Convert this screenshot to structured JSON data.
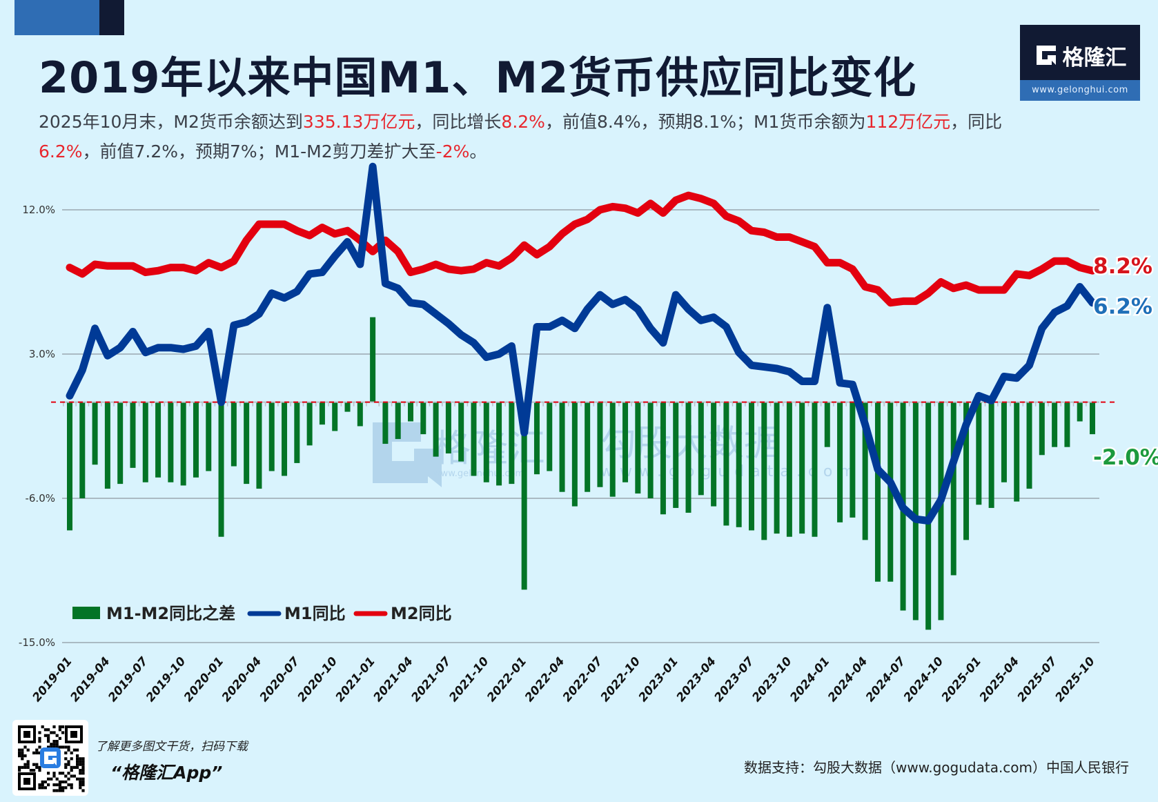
{
  "header": {
    "title": "2019年以来中国M1、M2货币供应同比变化",
    "subtitle_segments": [
      {
        "text": "2025年10月末，M2货币余额达到",
        "highlight": false
      },
      {
        "text": "335.13万亿元",
        "highlight": true
      },
      {
        "text": "，同比增长",
        "highlight": false
      },
      {
        "text": "8.2%",
        "highlight": true
      },
      {
        "text": "，前值8.4%，预期8.1%；M1货币余额为",
        "highlight": false
      },
      {
        "text": "112万亿元",
        "highlight": true
      },
      {
        "text": "，同比",
        "highlight": false
      },
      {
        "text": "6.2%",
        "highlight": true
      },
      {
        "text": "，前值7.2%，预期7%；M1-M2剪刀差扩大至",
        "highlight": false
      },
      {
        "text": "-2%",
        "highlight": true
      },
      {
        "text": "。",
        "highlight": false
      }
    ]
  },
  "logo": {
    "brand": "格隆汇",
    "url": "www.gelonghui.com",
    "icon": "gelonghui-g-logo-icon"
  },
  "watermark": {
    "left_brand": "格隆汇",
    "left_url": "www.gelonghui.com",
    "right_brand": "勾股大数据",
    "right_url": "www.gogudata.com"
  },
  "colors": {
    "m1": "#003a96",
    "m2": "#e3000f",
    "diff": "#037426",
    "highlight": "#e8262d",
    "m1_label": "#1f6fb8",
    "m2_label": "#d6141c",
    "diff_label": "#1d9a3d",
    "zero_line": "#e3000f",
    "grid": "#9aa7b0"
  },
  "chart_data": {
    "type": "bar+line",
    "title": "2019年以来中国M1、M2货币供应同比变化",
    "xlabel": "",
    "ylabel": "",
    "ylim": [
      -15,
      12
    ],
    "yticks": [
      12,
      3,
      -6,
      -15
    ],
    "ytick_labels": [
      "12.0%",
      "3.0%",
      "-6.0%",
      "-15.0%"
    ],
    "grid": true,
    "legend": {
      "placement": "bottom-left",
      "entries": [
        "M1-M2同比之差",
        "M1同比",
        "M2同比"
      ]
    },
    "end_labels": {
      "m2": "8.2%",
      "m1": "6.2%",
      "diff": "-2.0%"
    },
    "x": [
      "2019-01",
      "2019-02",
      "2019-03",
      "2019-04",
      "2019-05",
      "2019-06",
      "2019-07",
      "2019-08",
      "2019-09",
      "2019-10",
      "2019-11",
      "2019-12",
      "2020-01",
      "2020-02",
      "2020-03",
      "2020-04",
      "2020-05",
      "2020-06",
      "2020-07",
      "2020-08",
      "2020-09",
      "2020-10",
      "2020-11",
      "2020-12",
      "2021-01",
      "2021-02",
      "2021-03",
      "2021-04",
      "2021-05",
      "2021-06",
      "2021-07",
      "2021-08",
      "2021-09",
      "2021-10",
      "2021-11",
      "2021-12",
      "2022-01",
      "2022-02",
      "2022-03",
      "2022-04",
      "2022-05",
      "2022-06",
      "2022-07",
      "2022-08",
      "2022-09",
      "2022-10",
      "2022-11",
      "2022-12",
      "2023-01",
      "2023-02",
      "2023-03",
      "2023-04",
      "2023-05",
      "2023-06",
      "2023-07",
      "2023-08",
      "2023-09",
      "2023-10",
      "2023-11",
      "2023-12",
      "2024-01",
      "2024-02",
      "2024-03",
      "2024-04",
      "2024-05",
      "2024-06",
      "2024-07",
      "2024-08",
      "2024-09",
      "2024-10",
      "2024-11",
      "2024-12",
      "2025-01",
      "2025-02",
      "2025-03",
      "2025-04",
      "2025-05",
      "2025-06",
      "2025-07",
      "2025-08",
      "2025-09",
      "2025-10"
    ],
    "xtick_labels": [
      "2019-01",
      "2019-04",
      "2019-07",
      "2019-10",
      "2020-01",
      "2020-04",
      "2020-07",
      "2020-10",
      "2021-01",
      "2021-04",
      "2021-07",
      "2021-10",
      "2022-01",
      "2022-04",
      "2022-07",
      "2022-10",
      "2023-01",
      "2023-04",
      "2023-07",
      "2023-10",
      "2024-01",
      "2024-04",
      "2024-07",
      "2024-10",
      "2025-01",
      "2025-04",
      "2025-07",
      "2025-10"
    ],
    "series": [
      {
        "name": "M1-M2同比之差",
        "type": "bar",
        "values": [
          -8.0,
          -6.0,
          -3.9,
          -5.4,
          -5.1,
          -4.1,
          -5.0,
          -4.7,
          -5.0,
          -5.2,
          -4.7,
          -4.3,
          -8.4,
          -4.0,
          -5.1,
          -5.4,
          -4.3,
          -4.6,
          -3.8,
          -2.7,
          -1.4,
          -1.8,
          -0.6,
          -1.5,
          5.3,
          -2.6,
          -2.3,
          -1.2,
          -2.0,
          -3.4,
          -3.2,
          -3.7,
          -4.6,
          -5.0,
          -5.2,
          -5.1,
          -11.7,
          -4.5,
          -4.3,
          -5.6,
          -6.5,
          -5.6,
          -5.3,
          -5.9,
          -5.0,
          -5.7,
          -6.0,
          -7.0,
          -6.6,
          -6.9,
          -5.8,
          -6.5,
          -7.7,
          -7.8,
          -8.0,
          -8.6,
          -8.2,
          -8.4,
          -8.2,
          -8.4,
          -2.8,
          -7.5,
          -7.2,
          -8.6,
          -11.2,
          -11.2,
          -13.0,
          -13.6,
          -14.2,
          -13.6,
          -10.8,
          -8.6,
          -6.4,
          -6.6,
          -5.0,
          -6.2,
          -5.4,
          -3.3,
          -2.8,
          -2.8,
          -1.2,
          -2.0
        ]
      },
      {
        "name": "M1同比",
        "type": "line",
        "values": [
          0.4,
          2.0,
          4.6,
          2.9,
          3.4,
          4.4,
          3.1,
          3.4,
          3.4,
          3.3,
          3.5,
          4.4,
          0.0,
          4.8,
          5.0,
          5.5,
          6.8,
          6.5,
          6.9,
          8.0,
          8.1,
          9.1,
          10.0,
          8.6,
          14.7,
          7.4,
          7.1,
          6.2,
          6.1,
          5.5,
          4.9,
          4.2,
          3.7,
          2.8,
          3.0,
          3.5,
          -1.9,
          4.7,
          4.7,
          5.1,
          4.6,
          5.8,
          6.7,
          6.1,
          6.4,
          5.8,
          4.6,
          3.7,
          6.7,
          5.8,
          5.1,
          5.3,
          4.7,
          3.1,
          2.3,
          2.2,
          2.1,
          1.9,
          1.3,
          1.3,
          5.9,
          1.2,
          1.1,
          -1.4,
          -4.2,
          -5.0,
          -6.6,
          -7.3,
          -7.4,
          -6.1,
          -3.7,
          -1.4,
          0.4,
          0.1,
          1.6,
          1.5,
          2.3,
          4.6,
          5.6,
          6.0,
          7.2,
          6.2
        ]
      },
      {
        "name": "M2同比",
        "type": "line",
        "values": [
          8.4,
          8.0,
          8.6,
          8.5,
          8.5,
          8.5,
          8.1,
          8.2,
          8.4,
          8.4,
          8.2,
          8.7,
          8.4,
          8.8,
          10.1,
          11.1,
          11.1,
          11.1,
          10.7,
          10.4,
          10.9,
          10.5,
          10.7,
          10.1,
          9.4,
          10.1,
          9.4,
          8.1,
          8.3,
          8.6,
          8.3,
          8.2,
          8.3,
          8.7,
          8.5,
          9.0,
          9.8,
          9.2,
          9.7,
          10.5,
          11.1,
          11.4,
          12.0,
          12.2,
          12.1,
          11.8,
          12.4,
          11.8,
          12.6,
          12.9,
          12.7,
          12.4,
          11.6,
          11.3,
          10.7,
          10.6,
          10.3,
          10.3,
          10.0,
          9.7,
          8.7,
          8.7,
          8.3,
          7.2,
          7.0,
          6.2,
          6.3,
          6.3,
          6.8,
          7.5,
          7.1,
          7.3,
          7.0,
          7.0,
          7.0,
          8.0,
          7.9,
          8.3,
          8.8,
          8.8,
          8.4,
          8.2
        ]
      }
    ]
  },
  "footer": {
    "qr_caption": "了解更多图文干货，扫码下载",
    "app_name": "“格隆汇App”",
    "source": "数据支持：勾股大数据（www.gogudata.com）中国人民银行"
  }
}
